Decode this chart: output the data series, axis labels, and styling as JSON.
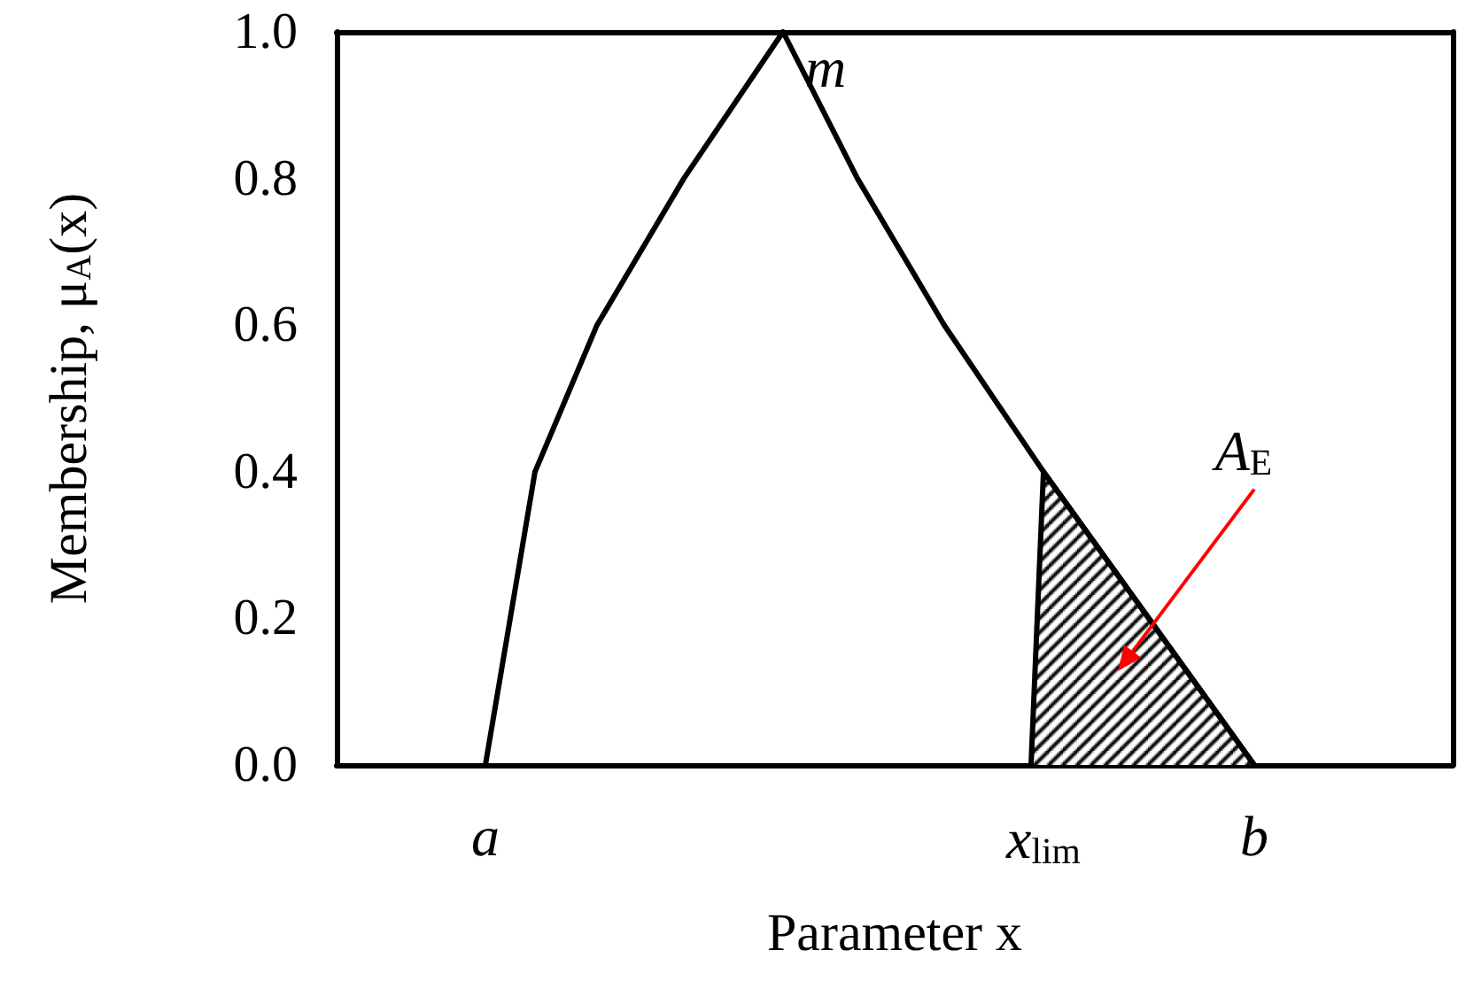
{
  "chart_data": {
    "type": "line",
    "xlabel": "Parameter x",
    "ylabel": "Membership, μ$_{A}$(x)",
    "categories": [
      null,
      null,
      null,
      null,
      null,
      null,
      null,
      null,
      null,
      null,
      null,
      null,
      "a",
      null,
      null,
      null,
      null,
      null,
      null,
      null,
      null,
      null,
      null,
      null,
      null,
      null,
      null,
      null,
      null,
      null,
      null,
      null,
      null,
      null,
      null,
      null,
      null,
      null,
      null,
      null,
      null,
      null,
      null,
      null,
      null,
      null,
      null,
      null,
      null,
      null,
      null,
      null,
      null,
      null,
      null,
      null,
      null,
      "x$_{lim}$",
      null,
      null,
      null,
      null,
      null,
      null,
      null,
      null,
      null,
      null,
      null,
      null,
      null,
      null,
      null,
      null,
      "b",
      null,
      null,
      null,
      null,
      null,
      null,
      null,
      null,
      null,
      null,
      null,
      null,
      null,
      null,
      null,
      null
    ],
    "ylim": [
      0,
      1.0
    ],
    "yticks": [
      {
        "value": 0,
        "label": "0.0"
      },
      {
        "value": 0.2,
        "label": "0.2"
      },
      {
        "value": 0.4,
        "label": "0.4"
      },
      {
        "value": 0.6,
        "label": "0.6"
      },
      {
        "value": 0.8,
        "label": "0.8"
      },
      {
        "value": 1.0,
        "label": "1.0"
      }
    ],
    "series": [
      {
        "color": "#000000",
        "values": [
          null,
          null,
          null,
          null,
          null,
          null,
          null,
          null,
          null,
          null,
          null,
          null,
          0.0,
          null,
          0.2,
          null,
          0.4,
          null,
          null,
          null,
          null,
          0.6,
          null,
          null,
          null,
          null,
          null,
          null,
          0.8,
          null,
          null,
          null,
          null,
          null,
          null,
          null,
          1.0,
          null,
          null,
          null,
          null,
          null,
          0.8,
          null,
          null,
          null,
          null,
          null,
          null,
          0.6,
          null,
          null,
          null,
          null,
          null,
          null,
          null,
          0.4,
          null,
          null,
          null,
          null,
          null,
          null,
          null,
          null,
          null,
          null,
          null,
          null,
          null,
          null,
          null,
          null,
          0.0,
          null,
          null,
          null,
          null,
          null,
          null,
          null,
          null,
          null,
          null,
          null,
          null,
          null,
          null,
          null,
          null
        ]
      },
      {
        "type": "area",
        "color": "#000000",
        "values": [
          null,
          null,
          null,
          null,
          null,
          null,
          null,
          null,
          null,
          null,
          null,
          null,
          null,
          null,
          null,
          null,
          null,
          null,
          null,
          null,
          null,
          null,
          null,
          null,
          null,
          null,
          null,
          null,
          null,
          null,
          null,
          null,
          null,
          null,
          null,
          null,
          null,
          null,
          null,
          null,
          null,
          null,
          null,
          null,
          null,
          null,
          null,
          null,
          null,
          null,
          null,
          null,
          null,
          null,
          null,
          null,
          0.0,
          0.4,
          null,
          null,
          null,
          null,
          null,
          null,
          null,
          null,
          null,
          null,
          null,
          null,
          null,
          null,
          null,
          null,
          0.0,
          null,
          null,
          null,
          null,
          null,
          null,
          null,
          null,
          null,
          null,
          null,
          null,
          null,
          null,
          null,
          null
        ]
      }
    ],
    "annotations": [
      "m",
      "A$_{E}$"
    ],
    "grid": false,
    "marker": "none",
    "line_style": "solid"
  }
}
